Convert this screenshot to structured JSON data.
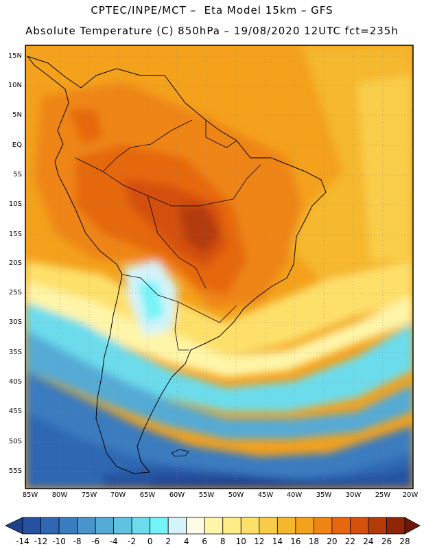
{
  "header": {
    "line1": "CPTEC/INPE/MCT –  Eta Model 15km – GFS",
    "line2": "Absolute Temperature (C) 850hPa – 19/08/2020 12UTC fct=235h"
  },
  "map": {
    "variable": "Absolute Temperature (C) 850hPa",
    "lat_labels": [
      "15N",
      "10N",
      "5N",
      "EQ",
      "5S",
      "10S",
      "15S",
      "20S",
      "25S",
      "30S",
      "35S",
      "40S",
      "45S",
      "50S",
      "55S"
    ],
    "lon_labels": [
      "85W",
      "80W",
      "75W",
      "70W",
      "65W",
      "60W",
      "55W",
      "50W",
      "45W",
      "40W",
      "35W",
      "30W",
      "25W",
      "20W"
    ],
    "lat_range": [
      17,
      -58
    ],
    "lon_range": [
      86,
      20
    ],
    "grid": "dotted"
  },
  "colorbar": {
    "labels": [
      "-14",
      "-12",
      "-10",
      "-8",
      "-6",
      "-4",
      "-2",
      "0",
      "2",
      "4",
      "6",
      "8",
      "10",
      "12",
      "14",
      "16",
      "18",
      "20",
      "22",
      "24",
      "26",
      "28"
    ],
    "colors": [
      "#1e3f8e",
      "#2552a0",
      "#2f67b2",
      "#3a7cbf",
      "#4a94cc",
      "#55aad6",
      "#5fc3e0",
      "#6cdcec",
      "#74f4f8",
      "#d4f4fa",
      "#fffbe6",
      "#fff5a8",
      "#feec85",
      "#fde06a",
      "#f9cd4a",
      "#f5b82d",
      "#f4a11c",
      "#ee8514",
      "#e6670e",
      "#d4500b",
      "#b33a09",
      "#8f2608",
      "#6a1808"
    ]
  }
}
